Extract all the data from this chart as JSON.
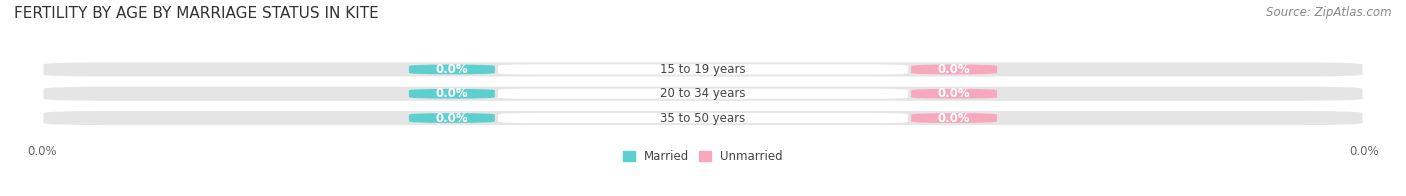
{
  "title": "FERTILITY BY AGE BY MARRIAGE STATUS IN KITE",
  "source": "Source: ZipAtlas.com",
  "age_groups": [
    "15 to 19 years",
    "20 to 34 years",
    "35 to 50 years"
  ],
  "married_values": [
    0.0,
    0.0,
    0.0
  ],
  "unmarried_values": [
    0.0,
    0.0,
    0.0
  ],
  "married_color": "#5ecfcf",
  "unmarried_color": "#f7a8bc",
  "bar_bg_color": "#e5e5e5",
  "title_fontsize": 11,
  "label_fontsize": 8.5,
  "tick_fontsize": 8.5,
  "source_fontsize": 8.5,
  "bg_color": "#ffffff",
  "age_label_color": "#444444",
  "value_label_color": "#ffffff",
  "legend_label_color": "#444444"
}
